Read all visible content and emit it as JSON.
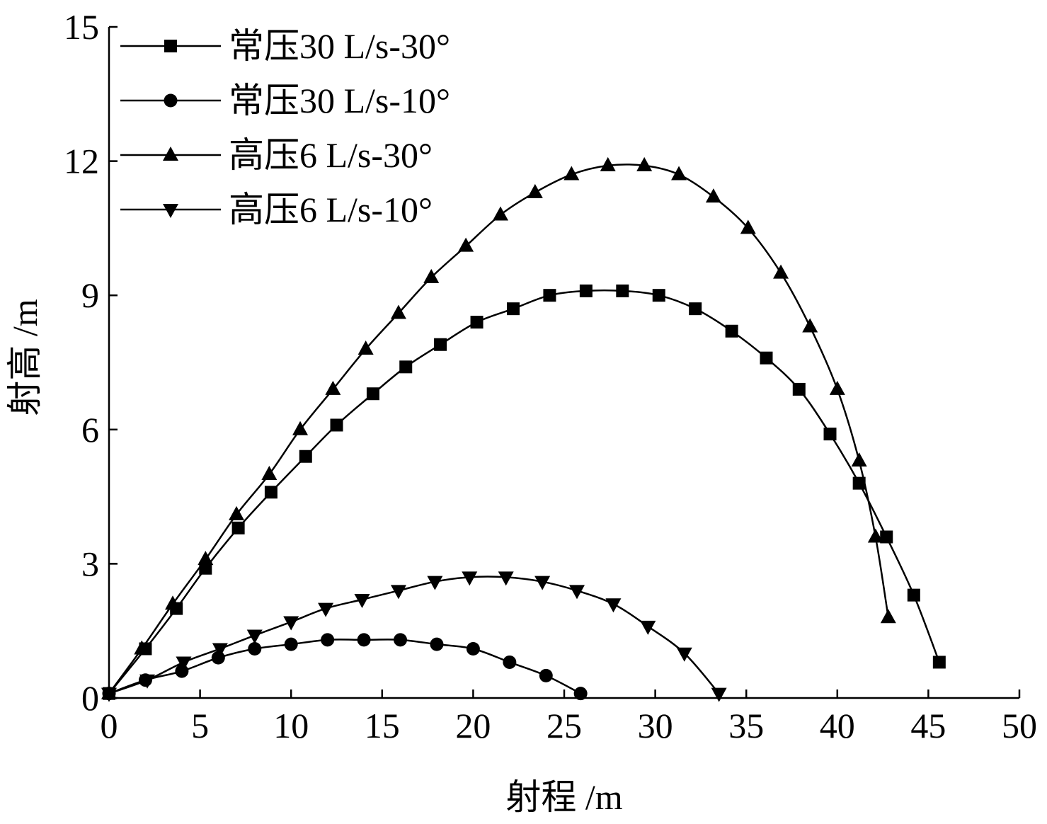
{
  "chart_data": {
    "type": "line",
    "xlabel": "射程 /m",
    "ylabel": "射高 /m",
    "xlim": [
      0,
      50
    ],
    "ylim": [
      0,
      15
    ],
    "xticks": [
      0,
      5,
      10,
      15,
      20,
      25,
      30,
      35,
      40,
      45,
      50
    ],
    "yticks": [
      0,
      3,
      6,
      9,
      12,
      15
    ],
    "grid": false,
    "legend_position": "top-left",
    "series": [
      {
        "name": "常压30 L/s-30°",
        "marker": "square",
        "x": [
          0,
          2,
          3.7,
          5.3,
          7.1,
          8.9,
          10.8,
          12.5,
          14.5,
          16.3,
          18.2,
          20.2,
          22.2,
          24.2,
          26.2,
          28.2,
          30.2,
          32.2,
          34.2,
          36.1,
          37.9,
          39.6,
          41.2,
          42.7,
          44.2,
          45.6
        ],
        "y": [
          0.1,
          1.1,
          2.0,
          2.9,
          3.8,
          4.6,
          5.4,
          6.1,
          6.8,
          7.4,
          7.9,
          8.4,
          8.7,
          9.0,
          9.1,
          9.1,
          9.0,
          8.7,
          8.2,
          7.6,
          6.9,
          5.9,
          4.8,
          3.6,
          2.3,
          0.8
        ]
      },
      {
        "name": "常压30 L/s-10°",
        "marker": "circle",
        "x": [
          0,
          2,
          4,
          6,
          8,
          10,
          12,
          14,
          16,
          18,
          20,
          22,
          24,
          25.9
        ],
        "y": [
          0.1,
          0.4,
          0.6,
          0.9,
          1.1,
          1.2,
          1.3,
          1.3,
          1.3,
          1.2,
          1.1,
          0.8,
          0.5,
          0.1
        ]
      },
      {
        "name": "高压6 L/s-30°",
        "marker": "triangle-up",
        "x": [
          0,
          1.8,
          3.5,
          5.3,
          7.0,
          8.8,
          10.5,
          12.3,
          14.1,
          15.9,
          17.7,
          19.6,
          21.5,
          23.4,
          25.4,
          27.4,
          29.4,
          31.3,
          33.2,
          35.1,
          36.9,
          38.5,
          40.0,
          41.2,
          42.1,
          42.8
        ],
        "y": [
          0.1,
          1.1,
          2.1,
          3.1,
          4.1,
          5.0,
          6.0,
          6.9,
          7.8,
          8.6,
          9.4,
          10.1,
          10.8,
          11.3,
          11.7,
          11.9,
          11.9,
          11.7,
          11.2,
          10.5,
          9.5,
          8.3,
          6.9,
          5.3,
          3.6,
          1.8
        ]
      },
      {
        "name": "高压6 L/s-10°",
        "marker": "triangle-down",
        "x": [
          0,
          2.1,
          4.1,
          6.1,
          8.0,
          10.0,
          11.9,
          13.9,
          15.9,
          17.9,
          19.8,
          21.8,
          23.8,
          25.7,
          27.7,
          29.6,
          31.6,
          33.5
        ],
        "y": [
          0.1,
          0.4,
          0.8,
          1.1,
          1.4,
          1.7,
          2.0,
          2.2,
          2.4,
          2.6,
          2.7,
          2.7,
          2.6,
          2.4,
          2.1,
          1.6,
          1.0,
          0.1
        ]
      }
    ]
  }
}
